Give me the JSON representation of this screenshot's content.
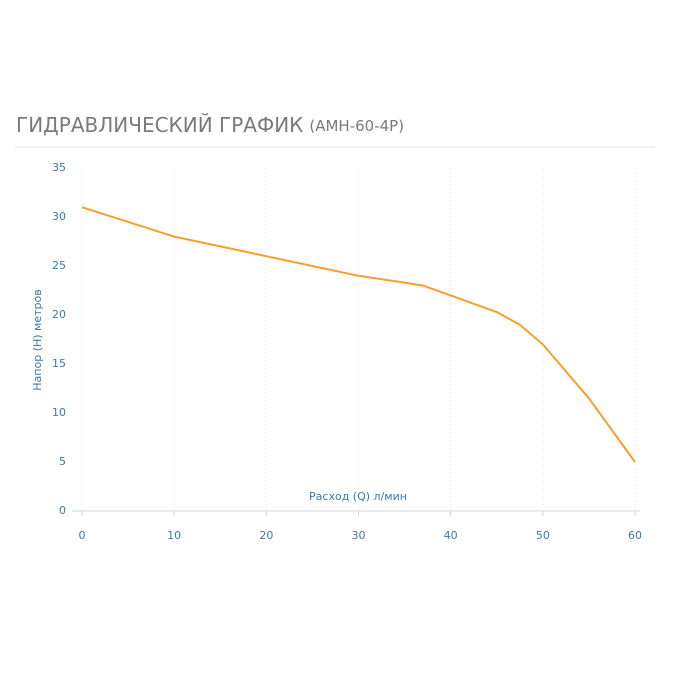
{
  "chart_data": {
    "type": "line",
    "title": "ГИДРАВЛИЧЕСКИЙ ГРАФИК",
    "subtitle": "(АМН-60-4Р)",
    "x_label": "Расход (Q) л/мин",
    "y_label": "Напор (H) метров",
    "x": [
      0,
      5,
      10,
      15,
      20,
      25,
      30,
      35,
      37,
      40,
      45,
      47.5,
      50,
      55,
      60
    ],
    "series": [
      {
        "name": "АМН-60-4Р",
        "color": "#f5a02c",
        "values": [
          31,
          29.5,
          28,
          27,
          26,
          25,
          24,
          23.3,
          23,
          22,
          20.3,
          19,
          17,
          11.5,
          5
        ]
      }
    ],
    "xlim": [
      0,
      60
    ],
    "xticks": [
      0,
      10,
      20,
      30,
      40,
      50,
      60
    ],
    "ylim": [
      0,
      35
    ],
    "yticks": [
      0,
      5,
      10,
      15,
      20,
      25,
      30,
      35
    ],
    "grid": true
  }
}
